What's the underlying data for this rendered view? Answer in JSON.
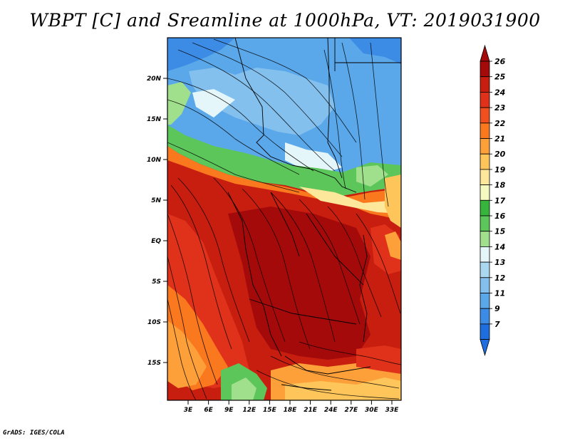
{
  "title": "WBPT [C] and Sreamline at 1000hPa, VT: 2019031900",
  "credit": "GrADS: IGES/COLA",
  "lat_labels": [
    "20N",
    "15N",
    "10N",
    "5N",
    "EQ",
    "5S",
    "10S",
    "15S"
  ],
  "lon_labels": [
    "3E",
    "6E",
    "9E",
    "12E",
    "15E",
    "18E",
    "21E",
    "24E",
    "27E",
    "30E",
    "33E"
  ],
  "colorbar": {
    "labels": [
      "26",
      "25",
      "24",
      "23",
      "22",
      "21",
      "20",
      "19",
      "18",
      "17",
      "16",
      "15",
      "14",
      "13",
      "12",
      "11",
      "9",
      "7"
    ],
    "colors": [
      "#a50a0a",
      "#c81e0f",
      "#e0321a",
      "#f0501e",
      "#fa781e",
      "#fda03a",
      "#fdc55a",
      "#fde79a",
      "#f4f9c0",
      "#37b43c",
      "#5cc65a",
      "#a0e08c",
      "#e4f6fa",
      "#a9d8f0",
      "#84c0ee",
      "#5aa8ea",
      "#3c8ce6",
      "#1e6ee0"
    ]
  },
  "map": {
    "lat_range": [
      -19,
      24.5
    ],
    "lon_range": [
      0.5,
      34.5
    ]
  }
}
